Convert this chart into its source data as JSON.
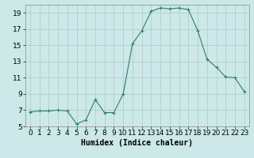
{
  "x": [
    0,
    1,
    2,
    3,
    4,
    5,
    6,
    7,
    8,
    9,
    10,
    11,
    12,
    13,
    14,
    15,
    16,
    17,
    18,
    19,
    20,
    21,
    22,
    23
  ],
  "y": [
    6.8,
    6.9,
    6.9,
    7.0,
    6.9,
    5.3,
    5.8,
    8.3,
    6.7,
    6.7,
    9.0,
    15.2,
    16.8,
    19.2,
    19.6,
    19.5,
    19.6,
    19.4,
    16.8,
    13.3,
    12.3,
    11.1,
    11.0,
    9.3
  ],
  "line_color": "#2e7d6e",
  "marker": "+",
  "marker_size": 3,
  "bg_color": "#cce8e8",
  "grid_color": "#b0c8c8",
  "xlabel": "Humidex (Indice chaleur)",
  "ylim": [
    5,
    20
  ],
  "xlim": [
    -0.5,
    23.5
  ],
  "yticks": [
    5,
    7,
    9,
    11,
    13,
    15,
    17,
    19
  ],
  "xticks": [
    0,
    1,
    2,
    3,
    4,
    5,
    6,
    7,
    8,
    9,
    10,
    11,
    12,
    13,
    14,
    15,
    16,
    17,
    18,
    19,
    20,
    21,
    22,
    23
  ],
  "xlabel_fontsize": 7,
  "tick_fontsize": 6.5
}
